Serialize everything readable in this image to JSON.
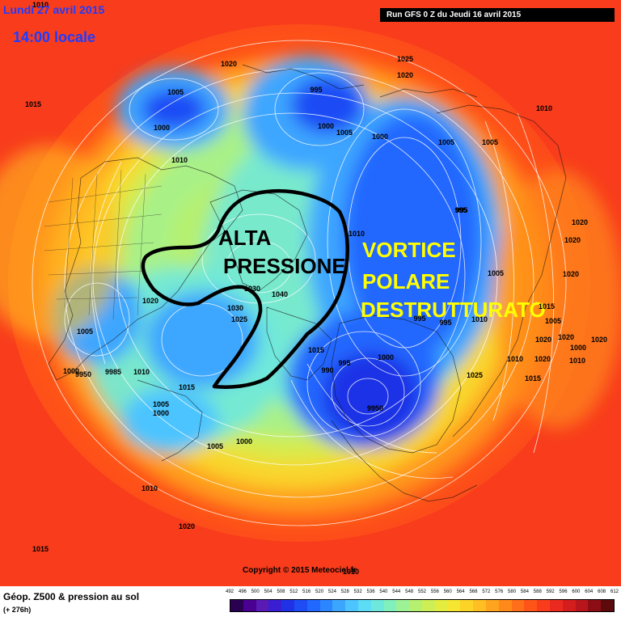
{
  "header": {
    "date": "Lundi 27 avril 2015",
    "time": "14:00 locale",
    "run": "Run GFS 0 Z du Jeudi 16 avril 2015"
  },
  "annotations": {
    "alta": "ALTA",
    "pressione": "PRESSIONE",
    "vortice": "VORTICE",
    "polare": "POLARE",
    "destrutturato": "DESTRUTTURATO"
  },
  "isobar_labels": [
    {
      "text": "1010"
    },
    {
      "text": "1015"
    },
    {
      "text": "1020"
    },
    {
      "text": "1025"
    },
    {
      "text": "1020"
    },
    {
      "text": "1005"
    },
    {
      "text": "995"
    },
    {
      "text": "1000"
    },
    {
      "text": "1005"
    },
    {
      "text": "1000"
    },
    {
      "text": "1010"
    },
    {
      "text": "1010"
    },
    {
      "text": "1005"
    },
    {
      "text": "1005"
    },
    {
      "text": "995"
    },
    {
      "text": "1000"
    },
    {
      "text": "1020"
    },
    {
      "text": "1020"
    },
    {
      "text": "1020"
    },
    {
      "text": "1010"
    },
    {
      "text": "1030"
    },
    {
      "text": "1025"
    },
    {
      "text": "1015"
    },
    {
      "text": "1040"
    },
    {
      "text": "1005"
    },
    {
      "text": "1000"
    },
    {
      "text": "9950"
    },
    {
      "text": "9985"
    },
    {
      "text": "1010"
    },
    {
      "text": "1015"
    },
    {
      "text": "1005"
    },
    {
      "text": "1000"
    },
    {
      "text": "1005"
    },
    {
      "text": "1000"
    },
    {
      "text": "1010"
    },
    {
      "text": "1020"
    },
    {
      "text": "1015"
    },
    {
      "text": "1010"
    },
    {
      "text": "995"
    },
    {
      "text": "1000"
    },
    {
      "text": "990"
    },
    {
      "text": "995"
    },
    {
      "text": "9950"
    },
    {
      "text": "1025"
    },
    {
      "text": "995"
    },
    {
      "text": "995"
    },
    {
      "text": "1010"
    },
    {
      "text": "1005"
    },
    {
      "text": "1010"
    },
    {
      "text": "1015"
    },
    {
      "text": "1020"
    },
    {
      "text": "1020"
    },
    {
      "text": "1000"
    },
    {
      "text": "1005"
    },
    {
      "text": "1015"
    },
    {
      "text": "1010"
    },
    {
      "text": "1020"
    },
    {
      "text": "1030"
    },
    {
      "text": "1020"
    },
    {
      "text": "1020"
    }
  ],
  "copyright": "Copyright © 2015 Meteociel.fr",
  "footer": {
    "title": "Géop. Z500 & pression au sol",
    "subtitle": "(+ 276h)"
  },
  "scale": {
    "labels": [
      "492",
      "496",
      "500",
      "504",
      "508",
      "512",
      "516",
      "520",
      "524",
      "528",
      "532",
      "536",
      "540",
      "544",
      "548",
      "552",
      "556",
      "560",
      "564",
      "568",
      "572",
      "576",
      "580",
      "584",
      "588",
      "592",
      "596",
      "600",
      "604",
      "608",
      "612"
    ],
    "colors": [
      "#2a0050",
      "#4a0090",
      "#5a1ab4",
      "#3a1ed2",
      "#1f32e6",
      "#1e4cf5",
      "#2068ff",
      "#2c86ff",
      "#3ca6ff",
      "#4cc4ff",
      "#5cdcf5",
      "#6ee8dc",
      "#82f0bc",
      "#9ef296",
      "#b6f070",
      "#cdee55",
      "#e4ec40",
      "#f6e632",
      "#fcd428",
      "#ffbe22",
      "#ffa41e",
      "#ff8a1a",
      "#ff6e18",
      "#ff5418",
      "#f83c1c",
      "#ea2a1e",
      "#d41e1e",
      "#b8161c",
      "#8c0e14",
      "#5c0a0c"
    ],
    "value_colors": {
      "low": "#1e4cf5",
      "high": "#f83c1c"
    }
  }
}
